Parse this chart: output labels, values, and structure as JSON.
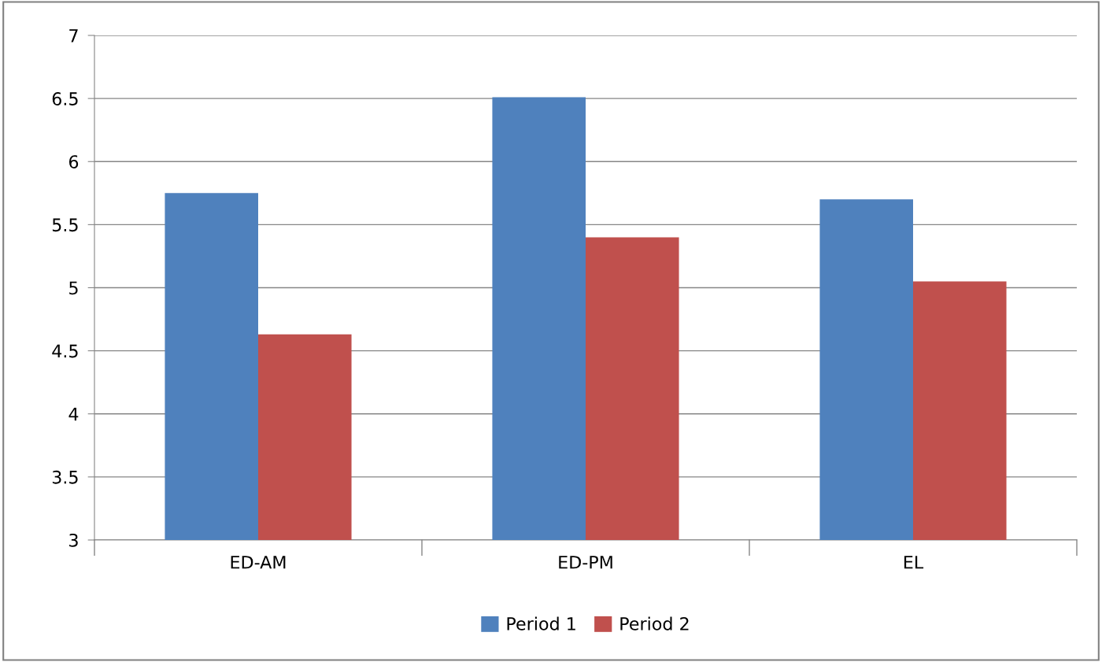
{
  "chart_data": {
    "type": "bar",
    "categories": [
      "ED-AM",
      "ED-PM",
      "EL"
    ],
    "series": [
      {
        "name": "Period 1",
        "color": "#4f81bd",
        "values": [
          5.75,
          6.51,
          5.7
        ]
      },
      {
        "name": "Period 2",
        "color": "#c0504d",
        "values": [
          4.63,
          5.4,
          5.05
        ]
      }
    ],
    "ylim": [
      3,
      7
    ],
    "yticks": [
      3,
      3.5,
      4,
      4.5,
      5,
      5.5,
      6,
      6.5,
      7
    ],
    "grid": "y",
    "legend": "bottom"
  }
}
